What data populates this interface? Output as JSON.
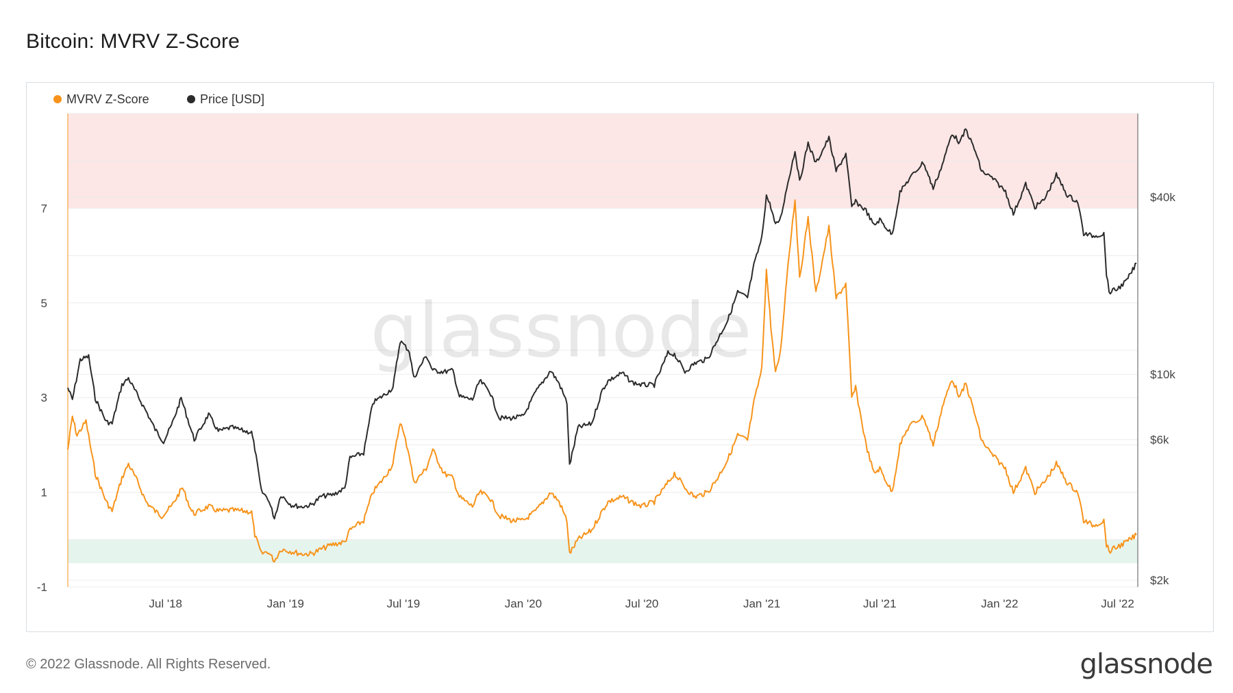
{
  "title": "Bitcoin: MVRV Z-Score",
  "footer": {
    "copyright": "© 2022 Glassnode. All Rights Reserved.",
    "logo": "glassnode"
  },
  "watermark": "glassnode",
  "colors": {
    "zscore": "#f7931a",
    "price": "#2b2b2b",
    "red_band": "#fde6e6",
    "green_band": "#e6f4ee",
    "grid": "#ececec"
  },
  "chart_data": {
    "type": "line",
    "title": "Bitcoin: MVRV Z-Score",
    "legend_position": "top-left",
    "legend": [
      "MVRV Z-Score",
      "Price [USD]"
    ],
    "x_range": [
      "2018-02-01",
      "2022-08-01"
    ],
    "x_ticks": [
      {
        "date": "2018-07-01",
        "label": "Jul '18"
      },
      {
        "date": "2019-01-01",
        "label": "Jan '19"
      },
      {
        "date": "2019-07-01",
        "label": "Jul '19"
      },
      {
        "date": "2020-01-01",
        "label": "Jan '20"
      },
      {
        "date": "2020-07-01",
        "label": "Jul '20"
      },
      {
        "date": "2021-01-01",
        "label": "Jan '21"
      },
      {
        "date": "2021-07-01",
        "label": "Jul '21"
      },
      {
        "date": "2022-01-01",
        "label": "Jan '22"
      },
      {
        "date": "2022-07-01",
        "label": "Jul '22"
      }
    ],
    "y_left": {
      "label": "MVRV Z-Score",
      "range": [
        -1,
        9
      ],
      "ticks": [
        -1,
        1,
        3,
        5,
        7
      ]
    },
    "y_right": {
      "label": "Price [USD]",
      "scale": "log",
      "ticks": [
        {
          "value": 2000,
          "label": "$2k"
        },
        {
          "value": 6000,
          "label": "$6k"
        },
        {
          "value": 10000,
          "label": "$10k"
        },
        {
          "value": 40000,
          "label": "$40k"
        }
      ]
    },
    "bands": [
      {
        "name": "overvalued-zone",
        "from": 7,
        "to": 9
      },
      {
        "name": "undervalued-zone",
        "from": -0.5,
        "to": 0
      }
    ],
    "series": [
      {
        "name": "MVRV Z-Score",
        "axis": "left",
        "points": [
          [
            "2018-02-01",
            1.9
          ],
          [
            "2018-02-08",
            2.6
          ],
          [
            "2018-02-15",
            2.2
          ],
          [
            "2018-03-01",
            2.5
          ],
          [
            "2018-03-15",
            1.4
          ],
          [
            "2018-04-01",
            0.8
          ],
          [
            "2018-04-10",
            0.6
          ],
          [
            "2018-04-25",
            1.3
          ],
          [
            "2018-05-05",
            1.6
          ],
          [
            "2018-05-20",
            1.2
          ],
          [
            "2018-06-01",
            0.8
          ],
          [
            "2018-06-15",
            0.6
          ],
          [
            "2018-06-25",
            0.5
          ],
          [
            "2018-07-10",
            0.7
          ],
          [
            "2018-07-27",
            1.1
          ],
          [
            "2018-08-10",
            0.6
          ],
          [
            "2018-08-14",
            0.55
          ],
          [
            "2018-09-05",
            0.7
          ],
          [
            "2018-09-20",
            0.6
          ],
          [
            "2018-10-10",
            0.62
          ],
          [
            "2018-11-01",
            0.6
          ],
          [
            "2018-11-10",
            0.58
          ],
          [
            "2018-11-15",
            0.1
          ],
          [
            "2018-11-25",
            -0.3
          ],
          [
            "2018-12-05",
            -0.25
          ],
          [
            "2018-12-15",
            -0.45
          ],
          [
            "2018-12-25",
            -0.2
          ],
          [
            "2019-01-10",
            -0.25
          ],
          [
            "2019-01-25",
            -0.3
          ],
          [
            "2019-02-10",
            -0.3
          ],
          [
            "2019-02-25",
            -0.2
          ],
          [
            "2019-03-15",
            -0.1
          ],
          [
            "2019-04-02",
            -0.05
          ],
          [
            "2019-04-10",
            0.2
          ],
          [
            "2019-05-01",
            0.4
          ],
          [
            "2019-05-15",
            1.0
          ],
          [
            "2019-06-01",
            1.3
          ],
          [
            "2019-06-15",
            1.6
          ],
          [
            "2019-06-26",
            2.5
          ],
          [
            "2019-07-10",
            1.8
          ],
          [
            "2019-07-17",
            1.2
          ],
          [
            "2019-08-05",
            1.5
          ],
          [
            "2019-08-15",
            1.9
          ],
          [
            "2019-09-01",
            1.4
          ],
          [
            "2019-09-15",
            1.3
          ],
          [
            "2019-09-25",
            0.9
          ],
          [
            "2019-10-15",
            0.7
          ],
          [
            "2019-10-26",
            1.0
          ],
          [
            "2019-11-10",
            0.9
          ],
          [
            "2019-11-25",
            0.5
          ],
          [
            "2019-12-15",
            0.4
          ],
          [
            "2020-01-01",
            0.4
          ],
          [
            "2020-01-20",
            0.6
          ],
          [
            "2020-02-12",
            1.0
          ],
          [
            "2020-02-25",
            0.8
          ],
          [
            "2020-03-08",
            0.4
          ],
          [
            "2020-03-12",
            -0.3
          ],
          [
            "2020-03-25",
            0.0
          ],
          [
            "2020-04-15",
            0.2
          ],
          [
            "2020-05-01",
            0.6
          ],
          [
            "2020-05-10",
            0.8
          ],
          [
            "2020-06-01",
            0.9
          ],
          [
            "2020-06-15",
            0.8
          ],
          [
            "2020-07-01",
            0.7
          ],
          [
            "2020-07-20",
            0.8
          ],
          [
            "2020-08-10",
            1.2
          ],
          [
            "2020-08-20",
            1.4
          ],
          [
            "2020-09-05",
            1.1
          ],
          [
            "2020-09-20",
            0.9
          ],
          [
            "2020-10-10",
            1.0
          ],
          [
            "2020-10-25",
            1.3
          ],
          [
            "2020-11-10",
            1.7
          ],
          [
            "2020-11-25",
            2.2
          ],
          [
            "2020-12-10",
            2.1
          ],
          [
            "2020-12-20",
            2.9
          ],
          [
            "2021-01-01",
            3.6
          ],
          [
            "2021-01-08",
            5.7
          ],
          [
            "2021-01-15",
            4.5
          ],
          [
            "2021-01-22",
            3.5
          ],
          [
            "2021-01-30",
            4.0
          ],
          [
            "2021-02-10",
            5.8
          ],
          [
            "2021-02-21",
            7.2
          ],
          [
            "2021-02-28",
            5.5
          ],
          [
            "2021-03-13",
            6.8
          ],
          [
            "2021-03-25",
            5.2
          ],
          [
            "2021-04-14",
            6.6
          ],
          [
            "2021-04-25",
            5.1
          ],
          [
            "2021-05-10",
            5.4
          ],
          [
            "2021-05-19",
            3.0
          ],
          [
            "2021-05-25",
            3.2
          ],
          [
            "2021-06-10",
            2.0
          ],
          [
            "2021-06-22",
            1.4
          ],
          [
            "2021-07-01",
            1.5
          ],
          [
            "2021-07-20",
            1.0
          ],
          [
            "2021-08-01",
            2.0
          ],
          [
            "2021-08-15",
            2.4
          ],
          [
            "2021-09-06",
            2.6
          ],
          [
            "2021-09-21",
            2.0
          ],
          [
            "2021-10-05",
            2.8
          ],
          [
            "2021-10-20",
            3.4
          ],
          [
            "2021-11-01",
            3.0
          ],
          [
            "2021-11-10",
            3.3
          ],
          [
            "2021-11-25",
            2.6
          ],
          [
            "2021-12-04",
            2.1
          ],
          [
            "2021-12-20",
            1.8
          ],
          [
            "2022-01-10",
            1.5
          ],
          [
            "2022-01-22",
            1.0
          ],
          [
            "2022-02-10",
            1.5
          ],
          [
            "2022-02-24",
            1.0
          ],
          [
            "2022-03-10",
            1.2
          ],
          [
            "2022-03-29",
            1.6
          ],
          [
            "2022-04-15",
            1.2
          ],
          [
            "2022-05-01",
            1.0
          ],
          [
            "2022-05-10",
            0.4
          ],
          [
            "2022-05-25",
            0.3
          ],
          [
            "2022-06-10",
            0.4
          ],
          [
            "2022-06-14",
            -0.1
          ],
          [
            "2022-06-18",
            -0.25
          ],
          [
            "2022-07-01",
            -0.15
          ],
          [
            "2022-07-15",
            -0.05
          ],
          [
            "2022-07-30",
            0.1
          ]
        ]
      },
      {
        "name": "Price [USD]",
        "axis": "right",
        "points": [
          [
            "2018-02-01",
            9000
          ],
          [
            "2018-02-08",
            8200
          ],
          [
            "2018-02-20",
            11200
          ],
          [
            "2018-03-05",
            11500
          ],
          [
            "2018-03-15",
            8300
          ],
          [
            "2018-04-01",
            6900
          ],
          [
            "2018-04-10",
            6800
          ],
          [
            "2018-04-25",
            9200
          ],
          [
            "2018-05-05",
            9700
          ],
          [
            "2018-05-20",
            8400
          ],
          [
            "2018-06-01",
            7500
          ],
          [
            "2018-06-15",
            6500
          ],
          [
            "2018-06-28",
            5900
          ],
          [
            "2018-07-10",
            6700
          ],
          [
            "2018-07-25",
            8300
          ],
          [
            "2018-08-10",
            6400
          ],
          [
            "2018-08-14",
            6000
          ],
          [
            "2018-09-05",
            7300
          ],
          [
            "2018-09-20",
            6400
          ],
          [
            "2018-10-10",
            6600
          ],
          [
            "2018-11-01",
            6400
          ],
          [
            "2018-11-10",
            6350
          ],
          [
            "2018-11-15",
            5600
          ],
          [
            "2018-11-25",
            4000
          ],
          [
            "2018-12-05",
            3800
          ],
          [
            "2018-12-15",
            3250
          ],
          [
            "2018-12-25",
            3900
          ],
          [
            "2019-01-10",
            3600
          ],
          [
            "2019-01-25",
            3550
          ],
          [
            "2019-02-10",
            3600
          ],
          [
            "2019-02-25",
            3850
          ],
          [
            "2019-03-15",
            3900
          ],
          [
            "2019-04-02",
            4100
          ],
          [
            "2019-04-10",
            5200
          ],
          [
            "2019-05-01",
            5400
          ],
          [
            "2019-05-15",
            8000
          ],
          [
            "2019-06-01",
            8500
          ],
          [
            "2019-06-15",
            9000
          ],
          [
            "2019-06-26",
            13000
          ],
          [
            "2019-07-10",
            12000
          ],
          [
            "2019-07-17",
            9700
          ],
          [
            "2019-08-05",
            11600
          ],
          [
            "2019-08-15",
            10300
          ],
          [
            "2019-09-01",
            10200
          ],
          [
            "2019-09-15",
            10300
          ],
          [
            "2019-09-25",
            8400
          ],
          [
            "2019-10-15",
            8200
          ],
          [
            "2019-10-26",
            9500
          ],
          [
            "2019-11-10",
            8800
          ],
          [
            "2019-11-25",
            7100
          ],
          [
            "2019-12-15",
            7100
          ],
          [
            "2020-01-01",
            7200
          ],
          [
            "2020-01-20",
            8700
          ],
          [
            "2020-02-12",
            10300
          ],
          [
            "2020-02-25",
            9300
          ],
          [
            "2020-03-08",
            8000
          ],
          [
            "2020-03-12",
            4900
          ],
          [
            "2020-03-25",
            6600
          ],
          [
            "2020-04-15",
            6800
          ],
          [
            "2020-05-01",
            8800
          ],
          [
            "2020-05-10",
            9500
          ],
          [
            "2020-06-01",
            10100
          ],
          [
            "2020-06-15",
            9400
          ],
          [
            "2020-07-01",
            9200
          ],
          [
            "2020-07-20",
            9200
          ],
          [
            "2020-08-10",
            11800
          ],
          [
            "2020-08-20",
            11700
          ],
          [
            "2020-09-05",
            10200
          ],
          [
            "2020-09-20",
            10900
          ],
          [
            "2020-10-10",
            11300
          ],
          [
            "2020-10-25",
            13100
          ],
          [
            "2020-11-10",
            15300
          ],
          [
            "2020-11-25",
            19000
          ],
          [
            "2020-12-10",
            18200
          ],
          [
            "2020-12-20",
            23500
          ],
          [
            "2021-01-01",
            29000
          ],
          [
            "2021-01-08",
            40500
          ],
          [
            "2021-01-15",
            37000
          ],
          [
            "2021-01-22",
            32000
          ],
          [
            "2021-01-30",
            34000
          ],
          [
            "2021-02-10",
            44800
          ],
          [
            "2021-02-21",
            57500
          ],
          [
            "2021-02-28",
            45000
          ],
          [
            "2021-03-13",
            61000
          ],
          [
            "2021-03-25",
            52000
          ],
          [
            "2021-04-14",
            63500
          ],
          [
            "2021-04-25",
            49000
          ],
          [
            "2021-05-10",
            56000
          ],
          [
            "2021-05-19",
            37000
          ],
          [
            "2021-05-25",
            38500
          ],
          [
            "2021-06-10",
            36000
          ],
          [
            "2021-06-22",
            32000
          ],
          [
            "2021-07-01",
            33500
          ],
          [
            "2021-07-20",
            29800
          ],
          [
            "2021-08-01",
            41500
          ],
          [
            "2021-08-15",
            46000
          ],
          [
            "2021-09-06",
            52500
          ],
          [
            "2021-09-21",
            42800
          ],
          [
            "2021-10-05",
            51500
          ],
          [
            "2021-10-20",
            66000
          ],
          [
            "2021-11-01",
            61000
          ],
          [
            "2021-11-10",
            68000
          ],
          [
            "2021-11-25",
            57000
          ],
          [
            "2021-12-04",
            49000
          ],
          [
            "2021-12-20",
            46500
          ],
          [
            "2022-01-10",
            41800
          ],
          [
            "2022-01-22",
            35000
          ],
          [
            "2022-02-10",
            44200
          ],
          [
            "2022-02-24",
            37000
          ],
          [
            "2022-03-10",
            39000
          ],
          [
            "2022-03-29",
            47500
          ],
          [
            "2022-04-15",
            40500
          ],
          [
            "2022-05-01",
            38500
          ],
          [
            "2022-05-10",
            30000
          ],
          [
            "2022-05-25",
            29500
          ],
          [
            "2022-06-10",
            30000
          ],
          [
            "2022-06-14",
            22000
          ],
          [
            "2022-06-18",
            19000
          ],
          [
            "2022-07-01",
            19500
          ],
          [
            "2022-07-15",
            20800
          ],
          [
            "2022-07-30",
            23800
          ]
        ]
      }
    ]
  }
}
